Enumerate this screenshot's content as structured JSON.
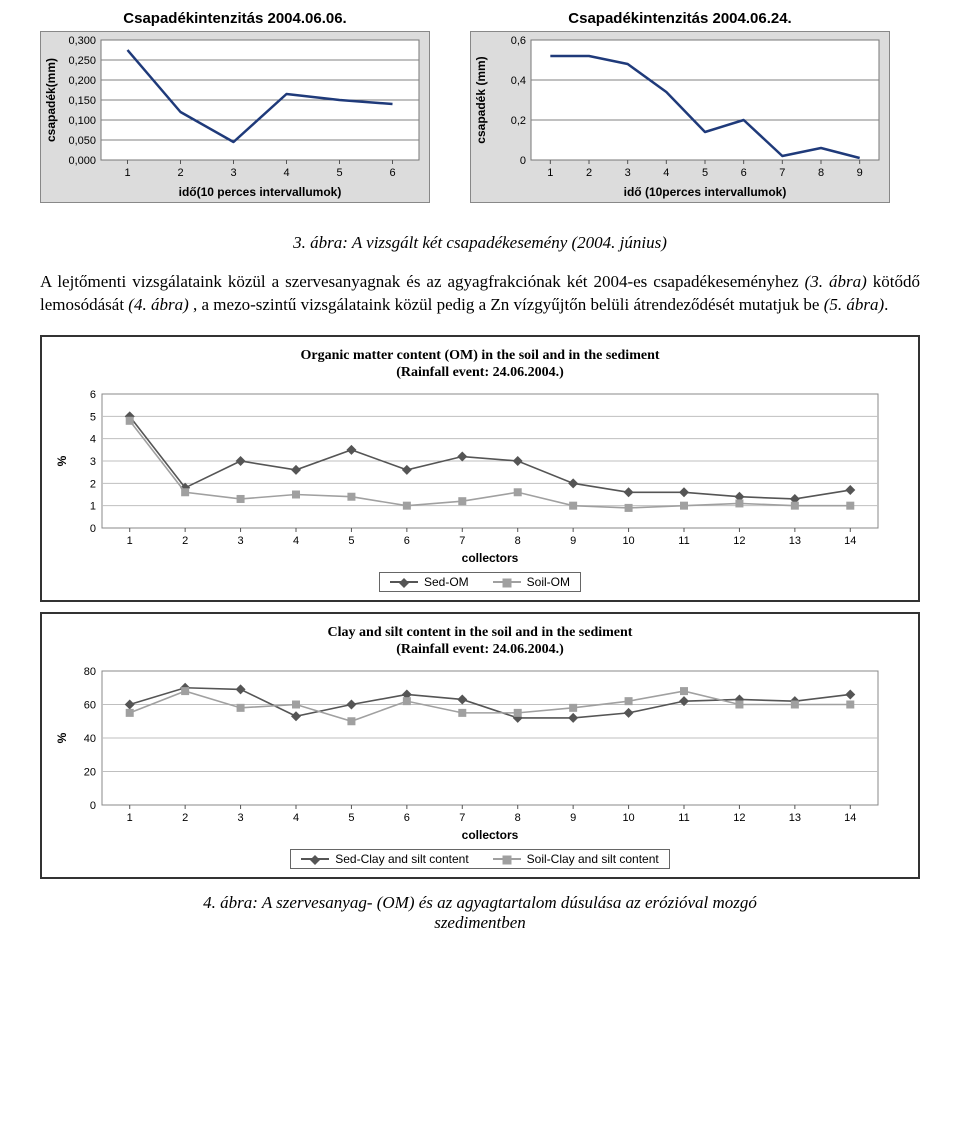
{
  "chartA": {
    "type": "line",
    "title": "Csapadékintenzitás 2004.06.06.",
    "title_fontsize": 15,
    "ylabel": "csapadék(mm)",
    "xlabel": "idő(10 perces intervallumok)",
    "label_fontsize": 12,
    "x": [
      1,
      2,
      3,
      4,
      5,
      6
    ],
    "y": [
      0.275,
      0.12,
      0.045,
      0.165,
      0.15,
      0.14
    ],
    "xlim": [
      0.5,
      6.5
    ],
    "ylim": [
      0.0,
      0.3
    ],
    "ytick_step": 0.05,
    "ytick_labels": [
      "0,000",
      "0,050",
      "0,100",
      "0,150",
      "0,200",
      "0,250",
      "0,300"
    ],
    "line_color": "#1f3a7a",
    "line_width": 2.5,
    "grid_color": "#808080",
    "plot_bg": "#ffffff",
    "outer_bg": "#dcdcdc",
    "axis_font": "Arial"
  },
  "chartB": {
    "type": "line",
    "title": "Csapadékintenzitás 2004.06.24.",
    "title_fontsize": 15,
    "ylabel": "csapadék (mm)",
    "xlabel": "idő (10perces intervallumok)",
    "label_fontsize": 12,
    "x": [
      1,
      2,
      3,
      4,
      5,
      6,
      7,
      8,
      9
    ],
    "y": [
      0.52,
      0.52,
      0.48,
      0.34,
      0.14,
      0.2,
      0.02,
      0.06,
      0.01
    ],
    "xlim": [
      0.5,
      9.5
    ],
    "ylim": [
      0,
      0.6
    ],
    "ytick_step": 0.2,
    "ytick_labels": [
      "0",
      "0,2",
      "0,4",
      "0,6"
    ],
    "line_color": "#1f3a7a",
    "line_width": 2.5,
    "grid_color": "#808080",
    "plot_bg": "#ffffff",
    "outer_bg": "#dcdcdc",
    "axis_font": "Arial"
  },
  "caption_top": "3. ábra: A vizsgált két csapadékesemény (2004. június)",
  "paragraph": "A lejtőmenti vizsgálataink közül a szervesanyagnak és az agyagfrakciónak két 2004-es csapadékeseményhez (3. ábra) kötődő lemosódását (4. ábra), a mezo-szintű vizsgálataink közül pedig a Zn vízgyűjtőn belüli átrendeződését mutatjuk be (5. ábra).",
  "chartC": {
    "type": "line",
    "title_lines": [
      "Organic matter content (OM) in the soil and in the sediment",
      "(Rainfall event: 24.06.2004.)"
    ],
    "ylabel": "%",
    "xlabel": "collectors",
    "x": [
      1,
      2,
      3,
      4,
      5,
      6,
      7,
      8,
      9,
      10,
      11,
      12,
      13,
      14
    ],
    "series": [
      {
        "name": "Sed-OM",
        "marker": "diamond",
        "color": "#555555",
        "y": [
          5.0,
          1.8,
          3.0,
          2.6,
          3.5,
          2.6,
          3.2,
          3.0,
          2.0,
          1.6,
          1.6,
          1.4,
          1.3,
          1.7
        ]
      },
      {
        "name": "Soil-OM",
        "marker": "square",
        "color": "#a0a0a0",
        "y": [
          4.8,
          1.6,
          1.3,
          1.5,
          1.4,
          1.0,
          1.2,
          1.6,
          1.0,
          0.9,
          1.0,
          1.1,
          1.0,
          1.0
        ]
      }
    ],
    "xlim": [
      0.5,
      14.5
    ],
    "ylim": [
      0,
      6
    ],
    "ytick_step": 1,
    "grid_color": "#bfbfbf",
    "plot_bg": "#ffffff",
    "line_width": 1.6,
    "marker_size": 5
  },
  "chartD": {
    "type": "line",
    "title_lines": [
      "Clay and silt content in the soil and in the sediment",
      "(Rainfall event: 24.06.2004.)"
    ],
    "ylabel": "%",
    "xlabel": "collectors",
    "x": [
      1,
      2,
      3,
      4,
      5,
      6,
      7,
      8,
      9,
      10,
      11,
      12,
      13,
      14
    ],
    "series": [
      {
        "name": "Sed-Clay and silt content",
        "marker": "diamond",
        "color": "#555555",
        "y": [
          60,
          70,
          69,
          53,
          60,
          66,
          63,
          52,
          52,
          55,
          62,
          63,
          62,
          66
        ]
      },
      {
        "name": "Soil-Clay and silt content",
        "marker": "square",
        "color": "#a0a0a0",
        "y": [
          55,
          68,
          58,
          60,
          50,
          62,
          55,
          55,
          58,
          62,
          68,
          60,
          60,
          60
        ]
      }
    ],
    "xlim": [
      0.5,
      14.5
    ],
    "ylim": [
      0,
      80
    ],
    "ytick_step": 20,
    "grid_color": "#bfbfbf",
    "plot_bg": "#ffffff",
    "line_width": 1.6,
    "marker_size": 5
  },
  "caption_bottom_lines": [
    "4. ábra: A szervesanyag- (OM) és az agyagtartalom dúsulása az erózióval mozgó",
    "szedimentben"
  ]
}
